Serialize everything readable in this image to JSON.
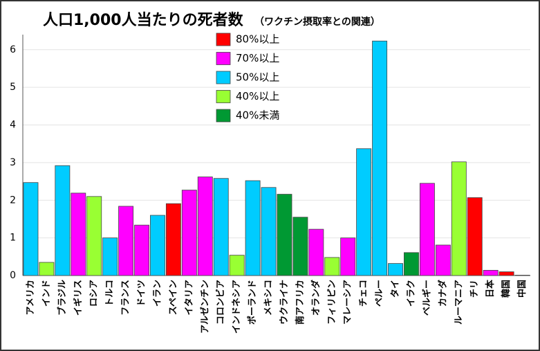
{
  "chart_data": {
    "type": "bar",
    "title": "人口1,000人当たりの死者数",
    "subtitle": "（ワクチン摂取率との関連）",
    "categories": [
      "アメリカ",
      "インド",
      "ブラジル",
      "イギリス",
      "ロシア",
      "トルコ",
      "フランス",
      "ドイツ",
      "イラン",
      "スペイン",
      "イタリア",
      "アルゼンチン",
      "コロンビア",
      "インドネシア",
      "ポーランド",
      "メキシコ",
      "ウクライナ",
      "南アフリカ",
      "オランダ",
      "フィリピン",
      "マレーシア",
      "チェコ",
      "ペルー",
      "タイ",
      "イラク",
      "ベルギー",
      "カナダ",
      "ルーマニア",
      "チリ",
      "日本",
      "韓国",
      "中国"
    ],
    "series": [
      {
        "name": "80%以上",
        "color": "#ff0000",
        "values": [
          null,
          null,
          null,
          null,
          null,
          null,
          null,
          null,
          null,
          1.91,
          null,
          null,
          null,
          null,
          null,
          null,
          null,
          null,
          null,
          null,
          null,
          null,
          null,
          null,
          null,
          null,
          null,
          null,
          2.07,
          null,
          0.1,
          0.01
        ]
      },
      {
        "name": "70%以上",
        "color": "#ff00ff",
        "values": [
          null,
          null,
          null,
          2.19,
          null,
          null,
          1.84,
          1.34,
          null,
          null,
          2.27,
          2.62,
          null,
          null,
          null,
          null,
          null,
          null,
          1.23,
          null,
          1.0,
          null,
          null,
          null,
          null,
          2.45,
          0.81,
          null,
          null,
          0.14,
          null,
          null
        ]
      },
      {
        "name": "50%以上",
        "color": "#00ccff",
        "values": [
          2.47,
          null,
          2.92,
          null,
          null,
          1.0,
          null,
          null,
          1.6,
          null,
          null,
          null,
          2.58,
          null,
          2.52,
          2.34,
          null,
          null,
          null,
          null,
          null,
          3.37,
          6.23,
          0.32,
          null,
          null,
          null,
          null,
          null,
          null,
          null,
          null
        ]
      },
      {
        "name": "40%以上",
        "color": "#99ff33",
        "values": [
          null,
          0.35,
          null,
          null,
          2.1,
          null,
          null,
          null,
          null,
          null,
          null,
          null,
          null,
          0.54,
          null,
          null,
          null,
          null,
          null,
          0.48,
          null,
          null,
          null,
          null,
          null,
          null,
          null,
          3.02,
          null,
          null,
          null,
          null
        ]
      },
      {
        "name": "40%未満",
        "color": "#009933",
        "values": [
          null,
          null,
          null,
          null,
          null,
          null,
          null,
          null,
          null,
          null,
          null,
          null,
          null,
          null,
          null,
          null,
          2.16,
          1.55,
          null,
          null,
          null,
          null,
          null,
          null,
          0.61,
          null,
          null,
          null,
          null,
          null,
          null,
          null
        ]
      }
    ],
    "ylim": [
      0,
      6.4
    ],
    "yticks": [
      0,
      1,
      2,
      3,
      4,
      5,
      6
    ],
    "grid": true
  }
}
